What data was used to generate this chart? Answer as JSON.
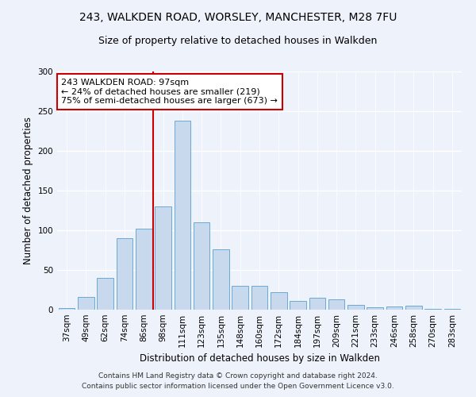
{
  "title_line1": "243, WALKDEN ROAD, WORSLEY, MANCHESTER, M28 7FU",
  "title_line2": "Size of property relative to detached houses in Walkden",
  "xlabel": "Distribution of detached houses by size in Walkden",
  "ylabel": "Number of detached properties",
  "bar_color": "#c8d9ee",
  "bar_edge_color": "#6aaad4",
  "categories": [
    "37sqm",
    "49sqm",
    "62sqm",
    "74sqm",
    "86sqm",
    "98sqm",
    "111sqm",
    "123sqm",
    "135sqm",
    "148sqm",
    "160sqm",
    "172sqm",
    "184sqm",
    "197sqm",
    "209sqm",
    "221sqm",
    "233sqm",
    "246sqm",
    "258sqm",
    "270sqm",
    "283sqm"
  ],
  "values": [
    2,
    16,
    40,
    90,
    102,
    130,
    238,
    110,
    76,
    30,
    30,
    22,
    11,
    15,
    13,
    6,
    3,
    4,
    5,
    1,
    1
  ],
  "vline_index": 5,
  "vline_color": "#cc0000",
  "annotation_text": "243 WALKDEN ROAD: 97sqm\n← 24% of detached houses are smaller (219)\n75% of semi-detached houses are larger (673) →",
  "annotation_box_color": "white",
  "annotation_box_edge_color": "#cc0000",
  "ylim": [
    0,
    300
  ],
  "yticks": [
    0,
    50,
    100,
    150,
    200,
    250,
    300
  ],
  "footer_line1": "Contains HM Land Registry data © Crown copyright and database right 2024.",
  "footer_line2": "Contains public sector information licensed under the Open Government Licence v3.0.",
  "bg_color": "#eef2fb",
  "grid_color": "#ffffff",
  "title_fontsize": 10,
  "subtitle_fontsize": 9,
  "axis_label_fontsize": 8.5,
  "tick_fontsize": 7.5,
  "annotation_fontsize": 8,
  "footer_fontsize": 6.5
}
